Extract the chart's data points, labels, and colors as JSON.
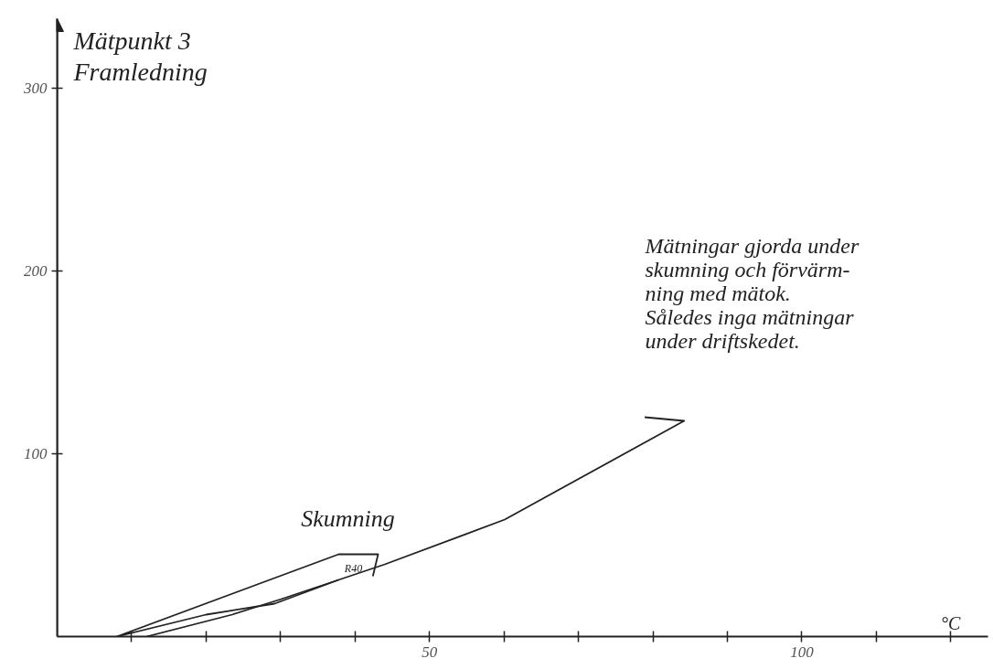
{
  "chart_data": {
    "type": "line",
    "title": "Mätpunkt 3",
    "subtitle": "Framledning",
    "xlabel": "°C",
    "xlim": [
      0,
      125
    ],
    "ylim": [
      0,
      338
    ],
    "xticks": [
      {
        "value": 10,
        "label": null
      },
      {
        "value": 20,
        "label": null
      },
      {
        "value": 30,
        "label": null
      },
      {
        "value": 40,
        "label": null
      },
      50,
      {
        "value": 60,
        "label": null
      },
      {
        "value": 70,
        "label": null
      },
      {
        "value": 80,
        "label": null
      },
      {
        "value": 90,
        "label": null
      },
      100,
      {
        "value": 110,
        "label": null
      },
      {
        "value": 120,
        "label": null
      }
    ],
    "yticks": [
      100,
      200,
      300
    ],
    "marker": "none",
    "line_style": "solid",
    "series": [
      {
        "color": "#222222",
        "x": [
          12,
          23.5,
          30.1,
          44,
          60.1,
          84.2,
          78.9
        ],
        "values": [
          0,
          12,
          20.5,
          39.5,
          64,
          118,
          120
        ]
      },
      {
        "color": "#222222",
        "x": [
          37.8,
          29.2,
          20,
          8,
          37.8,
          43.1,
          42.4
        ],
        "values": [
          31,
          18,
          12,
          0,
          45,
          45,
          33
        ]
      }
    ],
    "annotations": [
      "Skumning",
      "R40",
      "Mätningar gjorda under\nskumning och förvärm-\nning med mätok.\nSåledes inga mätningar\nunder driftskedet."
    ]
  }
}
